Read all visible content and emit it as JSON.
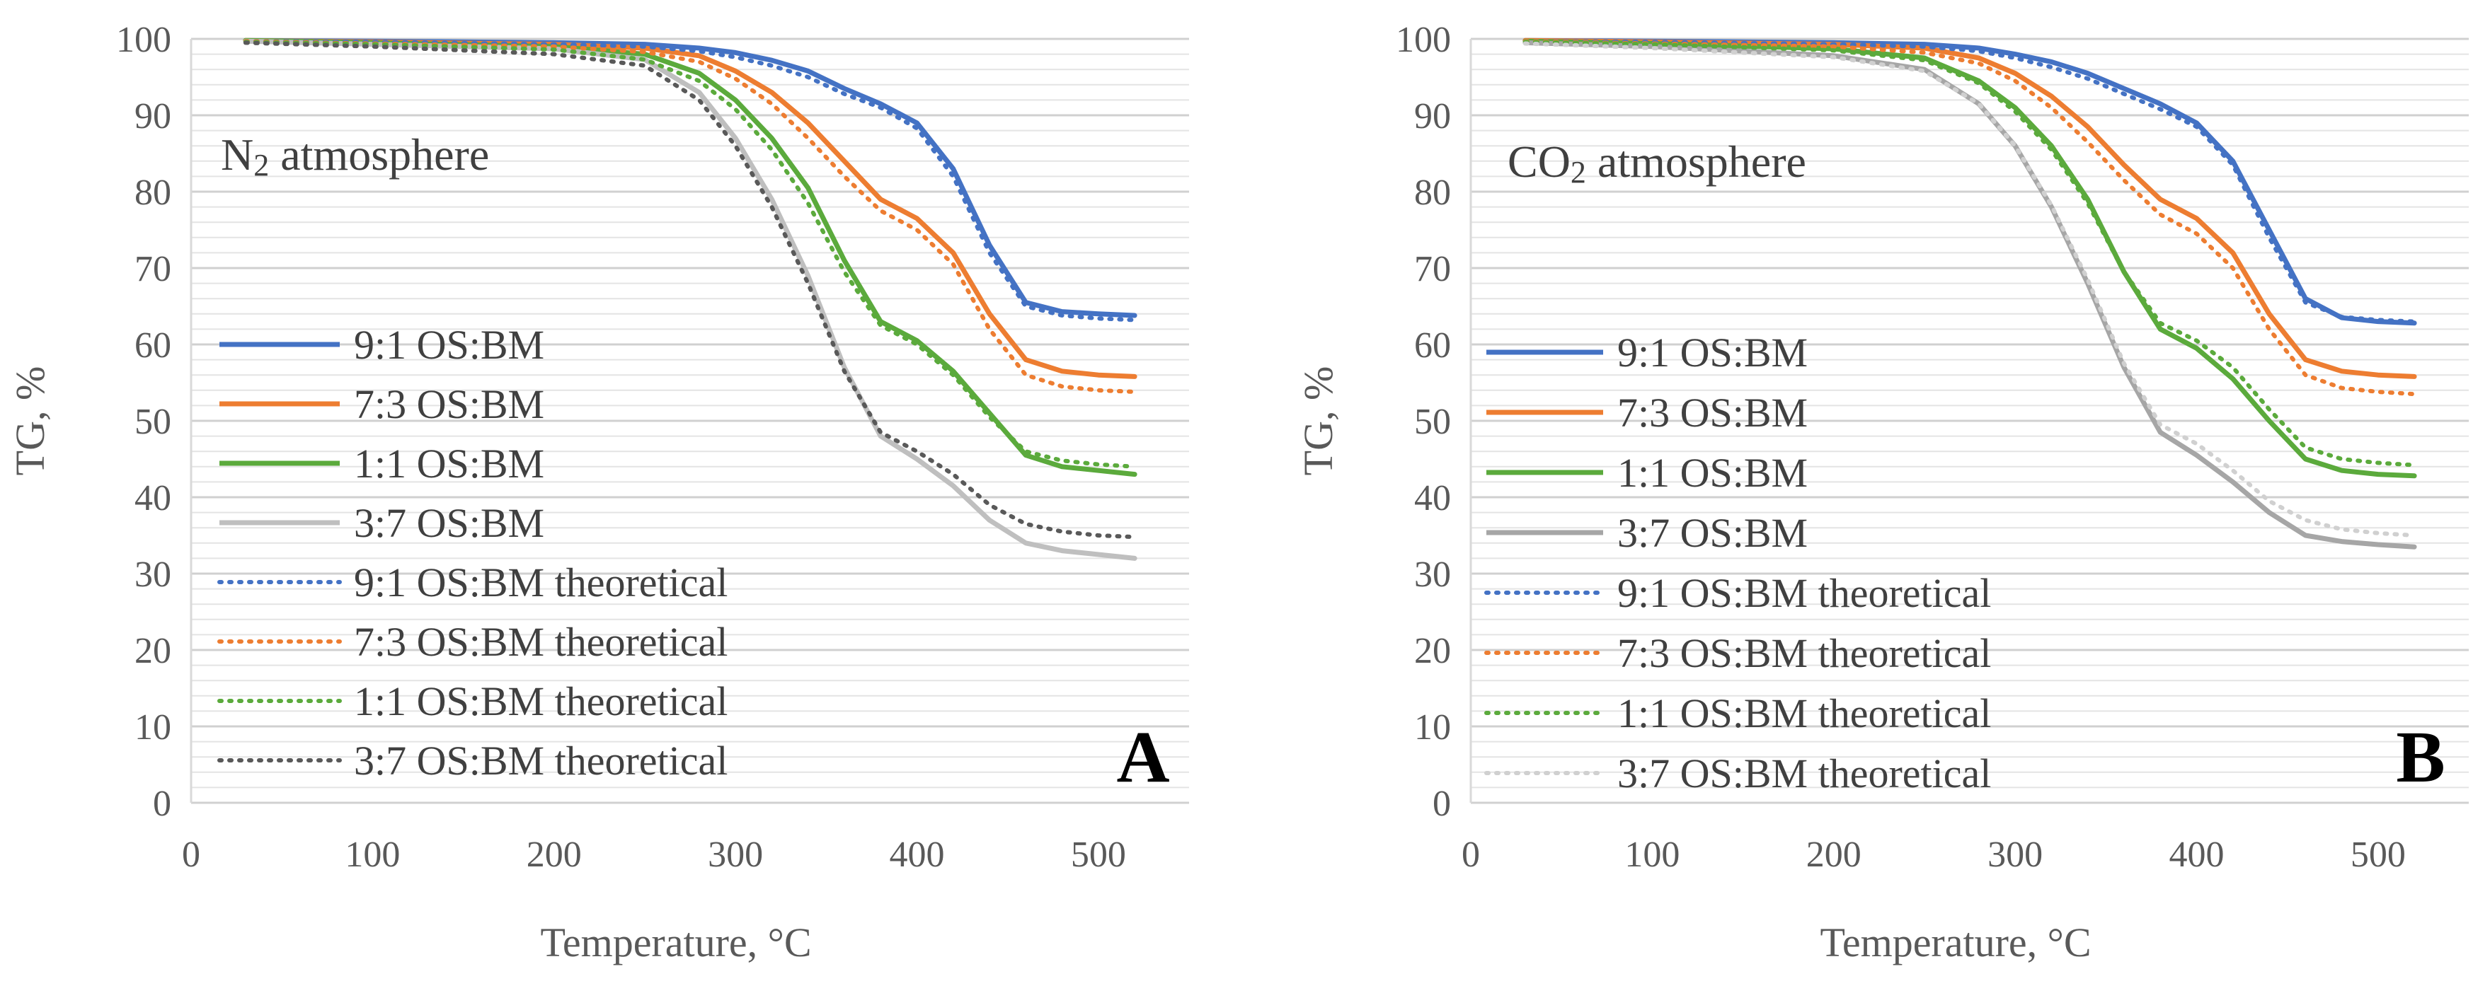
{
  "chart_data": [
    {
      "type": "line",
      "panel_label": "A",
      "annotation": {
        "prefix": "N",
        "subscript": "2",
        "suffix": " atmosphere"
      },
      "xlabel": "Temperature, °C",
      "ylabel": "TG, %",
      "xlim": [
        0,
        550
      ],
      "ylim": [
        0,
        100
      ],
      "xticks": [
        "0",
        "100",
        "200",
        "300",
        "400",
        "500"
      ],
      "yticks": [
        "0",
        "10",
        "20",
        "30",
        "40",
        "50",
        "60",
        "70",
        "80",
        "90",
        "100"
      ],
      "x": [
        30,
        100,
        200,
        250,
        280,
        300,
        320,
        340,
        360,
        380,
        400,
        420,
        440,
        460,
        480,
        500,
        520
      ],
      "series": [
        {
          "name": "9:1 OS:BM",
          "color": "#4472C4",
          "style": "solid",
          "values": [
            99.8,
            99.7,
            99.5,
            99.3,
            98.8,
            98.2,
            97.2,
            95.8,
            93.5,
            91.5,
            89.0,
            83.0,
            73.0,
            65.5,
            64.3,
            64.0,
            63.8
          ]
        },
        {
          "name": "7:3 OS:BM",
          "color": "#ED7D31",
          "style": "solid",
          "values": [
            99.8,
            99.6,
            99.3,
            98.8,
            97.8,
            95.8,
            93.0,
            89.0,
            84.0,
            79.0,
            76.5,
            72.0,
            64.0,
            58.0,
            56.5,
            56.0,
            55.8
          ]
        },
        {
          "name": "1:1 OS:BM",
          "color": "#5BAA3C",
          "style": "solid",
          "values": [
            99.8,
            99.5,
            99.0,
            98.0,
            95.5,
            92.0,
            87.0,
            80.5,
            71.0,
            63.0,
            60.5,
            56.5,
            51.0,
            45.5,
            44.0,
            43.5,
            43.0
          ]
        },
        {
          "name": "3:7 OS:BM",
          "color": "#BFBFBF",
          "style": "solid",
          "values": [
            99.7,
            99.3,
            98.7,
            97.3,
            93.0,
            87.0,
            79.0,
            69.0,
            57.0,
            48.0,
            45.0,
            41.5,
            37.0,
            34.0,
            33.0,
            32.5,
            32.0
          ]
        },
        {
          "name": "9:1 OS:BM theoretical",
          "color": "#4472C4",
          "style": "dotted",
          "values": [
            99.7,
            99.6,
            99.3,
            99.0,
            98.4,
            97.6,
            96.5,
            95.0,
            92.8,
            91.0,
            88.3,
            82.0,
            72.0,
            65.0,
            63.8,
            63.4,
            63.2
          ]
        },
        {
          "name": "7:3 OS:BM theoretical",
          "color": "#ED7D31",
          "style": "dotted",
          "values": [
            99.7,
            99.4,
            99.0,
            98.3,
            97.0,
            94.8,
            91.5,
            87.0,
            82.0,
            77.5,
            75.0,
            70.5,
            62.0,
            56.0,
            54.5,
            54.0,
            53.8
          ]
        },
        {
          "name": "1:1 OS:BM theoretical",
          "color": "#5BAA3C",
          "style": "dotted",
          "values": [
            99.6,
            99.3,
            98.6,
            97.3,
            94.5,
            90.8,
            85.5,
            78.5,
            69.5,
            62.5,
            60.0,
            56.0,
            50.5,
            46.0,
            44.8,
            44.3,
            44.0
          ]
        },
        {
          "name": "3:7 OS:BM theoretical",
          "color": "#595959",
          "style": "dotted",
          "values": [
            99.5,
            99.0,
            98.0,
            96.5,
            92.0,
            86.0,
            78.0,
            68.0,
            56.5,
            48.5,
            46.0,
            43.0,
            39.0,
            36.5,
            35.5,
            35.0,
            34.8
          ]
        }
      ]
    },
    {
      "type": "line",
      "panel_label": "B",
      "annotation": {
        "prefix": "CO",
        "subscript": "2",
        "suffix": " atmosphere"
      },
      "xlabel": "Temperature, °C",
      "ylabel": "TG, %",
      "xlim": [
        0,
        550
      ],
      "ylim": [
        0,
        100
      ],
      "xticks": [
        "0",
        "100",
        "200",
        "300",
        "400",
        "500"
      ],
      "yticks": [
        "0",
        "10",
        "20",
        "30",
        "40",
        "50",
        "60",
        "70",
        "80",
        "90",
        "100"
      ],
      "x": [
        30,
        100,
        200,
        250,
        280,
        300,
        320,
        340,
        360,
        380,
        400,
        420,
        440,
        460,
        480,
        500,
        520
      ],
      "series": [
        {
          "name": "9:1 OS:BM",
          "color": "#4472C4",
          "style": "solid",
          "values": [
            99.8,
            99.7,
            99.5,
            99.3,
            98.8,
            98.0,
            97.0,
            95.5,
            93.5,
            91.5,
            89.0,
            84.0,
            75.0,
            66.0,
            63.5,
            63.0,
            62.8
          ]
        },
        {
          "name": "7:3 OS:BM",
          "color": "#ED7D31",
          "style": "solid",
          "values": [
            99.8,
            99.6,
            99.3,
            98.8,
            97.5,
            95.5,
            92.5,
            88.5,
            83.5,
            79.0,
            76.5,
            72.0,
            64.0,
            58.0,
            56.5,
            56.0,
            55.8
          ]
        },
        {
          "name": "1:1 OS:BM",
          "color": "#5BAA3C",
          "style": "solid",
          "values": [
            99.7,
            99.4,
            98.7,
            97.5,
            94.5,
            91.0,
            86.0,
            79.0,
            69.5,
            62.0,
            59.5,
            55.5,
            50.0,
            45.0,
            43.5,
            43.0,
            42.8
          ]
        },
        {
          "name": "3:7 OS:BM",
          "color": "#A6A6A6",
          "style": "solid",
          "values": [
            99.5,
            99.0,
            97.8,
            96.0,
            91.5,
            86.0,
            78.0,
            68.0,
            57.0,
            48.5,
            45.5,
            42.0,
            38.0,
            35.0,
            34.2,
            33.8,
            33.5
          ]
        },
        {
          "name": "9:1 OS:BM theoretical",
          "color": "#4472C4",
          "style": "dotted",
          "values": [
            99.7,
            99.6,
            99.3,
            99.0,
            98.4,
            97.5,
            96.3,
            94.8,
            92.8,
            90.8,
            88.5,
            83.5,
            74.0,
            65.5,
            63.6,
            63.2,
            63.0
          ]
        },
        {
          "name": "7:3 OS:BM theoretical",
          "color": "#ED7D31",
          "style": "dotted",
          "values": [
            99.7,
            99.4,
            99.0,
            98.2,
            96.8,
            94.5,
            91.0,
            86.5,
            81.5,
            77.0,
            74.5,
            70.0,
            62.0,
            56.0,
            54.3,
            53.8,
            53.5
          ]
        },
        {
          "name": "1:1 OS:BM theoretical",
          "color": "#5BAA3C",
          "style": "dotted",
          "values": [
            99.6,
            99.3,
            98.5,
            97.2,
            94.2,
            90.5,
            85.5,
            78.5,
            69.5,
            62.8,
            60.5,
            57.0,
            51.5,
            46.5,
            45.0,
            44.5,
            44.2
          ]
        },
        {
          "name": "3:7 OS:BM theoretical",
          "color": "#D0D0D0",
          "style": "dotted",
          "values": [
            99.4,
            98.8,
            97.6,
            95.8,
            91.5,
            86.0,
            78.2,
            68.5,
            57.5,
            49.5,
            47.0,
            43.5,
            39.5,
            37.0,
            35.8,
            35.3,
            35.0
          ]
        }
      ]
    }
  ]
}
